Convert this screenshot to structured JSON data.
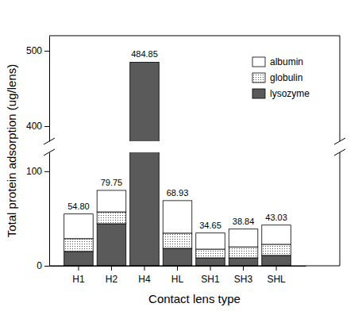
{
  "chart_data": {
    "type": "bar",
    "stacked": true,
    "x_label": "Contact lens type",
    "y_label": "Total protein adsorption (ug/lens)",
    "categories": [
      "H1",
      "H2",
      "H4",
      "HL",
      "SH1",
      "SH3",
      "SHL"
    ],
    "series": [
      {
        "name": "lysozyme",
        "color": "#5a5a5a",
        "values": [
          15.2,
          44.5,
          484.85,
          18.5,
          8.4,
          8.4,
          11.0
        ]
      },
      {
        "name": "globulin",
        "color": "#333333",
        "marker": "dot",
        "values": [
          13.5,
          12.5,
          0,
          16.0,
          9.2,
          11.6,
          11.7
        ]
      },
      {
        "name": "albumin",
        "color": "#ffffff",
        "values": [
          26.1,
          22.75,
          0,
          34.43,
          17.05,
          18.84,
          20.33
        ]
      }
    ],
    "totals": {
      "values": [
        54.8,
        79.75,
        484.85,
        68.93,
        34.65,
        38.84,
        43.03
      ],
      "value_labels": [
        "54.80",
        "79.75",
        "484.85",
        "68.93",
        "34.65",
        "38.84",
        "43.03"
      ]
    },
    "ylim": [
      0,
      520
    ],
    "ybreak": [
      120,
      380
    ],
    "yticks": [
      0,
      100,
      400,
      500
    ],
    "legend": "upper right",
    "grid": false
  }
}
